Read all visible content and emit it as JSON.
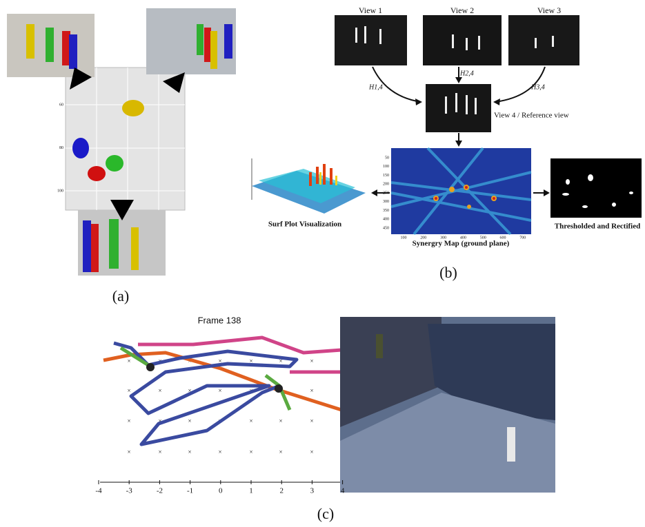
{
  "panel_a": {
    "caption": "(a)",
    "yticks": [
      "60",
      "80",
      "100"
    ]
  },
  "panel_b": {
    "caption": "(b)",
    "views": [
      "View 1",
      "View 2",
      "View 3"
    ],
    "homographies": [
      "H1,4",
      "H2,4",
      "H3,4"
    ],
    "reference_view": "View 4 / Reference view",
    "surf_plot": "Surf Plot Visualization",
    "synergy_map": "Synergry Map (ground plane)",
    "synergy_yticks": [
      "50",
      "100",
      "150",
      "200",
      "250",
      "300",
      "350",
      "400",
      "450"
    ],
    "synergy_xticks": [
      "100",
      "200",
      "300",
      "400",
      "500",
      "600",
      "700"
    ],
    "thresholded": "Thresholded and Rectified"
  },
  "panel_c": {
    "caption": "(c)",
    "title": "Frame 138",
    "xticks": [
      "-4",
      "-3",
      "-2",
      "-1",
      "0",
      "1",
      "2",
      "3",
      "4"
    ]
  }
}
